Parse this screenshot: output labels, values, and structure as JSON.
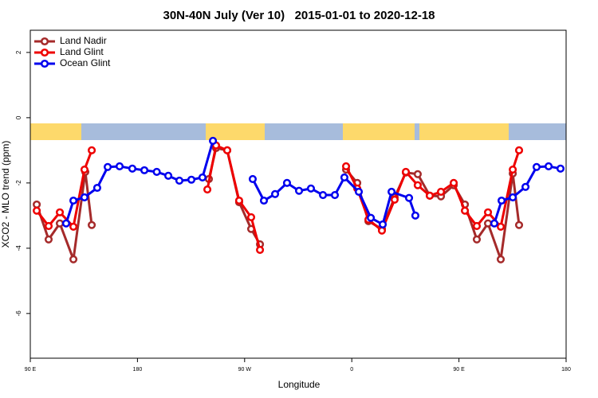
{
  "chart_data": {
    "type": "line",
    "title": "30N-40N July (Ver 10)   2015-01-01 to 2020-12-18",
    "xlabel": "Longitude",
    "ylabel": "XCO2 - MLO trend (ppm)",
    "xlim": [
      90,
      540
    ],
    "xticks": [
      {
        "value": 90,
        "label": "90 E"
      },
      {
        "value": 180,
        "label": "180"
      },
      {
        "value": 270,
        "label": "90 W"
      },
      {
        "value": 360,
        "label": "0"
      },
      {
        "value": 450,
        "label": "90 E"
      },
      {
        "value": 540,
        "label": "180"
      }
    ],
    "ylim": [
      -7.37,
      2.68
    ],
    "yticks": [
      -6,
      -4,
      -2,
      0,
      2
    ],
    "legend": "top-left",
    "series": [
      {
        "name": "Land Nadir",
        "color": "#a52a2a",
        "x": [
          95.4,
          105.4,
          114.8,
          126.2,
          136.2,
          141.6,
          null,
          240,
          246,
          255.4,
          265.4,
          275.5,
          282.9,
          null,
          355.2,
          364.6,
          374,
          385.3,
          396,
          405.4,
          415.4,
          425.5,
          434.9,
          445.6,
          455,
          465,
          474.4,
          485.1,
          495.2,
          500.5
        ],
        "values": [
          -2.66,
          -3.73,
          -3.24,
          -4.34,
          -1.66,
          -3.29,
          null,
          -1.88,
          -0.93,
          -1.0,
          -2.59,
          -3.41,
          -3.88,
          null,
          -1.59,
          -2.0,
          -3.17,
          -3.41,
          -2.44,
          -1.68,
          -1.73,
          -2.39,
          -2.41,
          -2.07,
          -2.66,
          -3.73,
          -3.24,
          -4.34,
          -1.71,
          -3.29
        ]
      },
      {
        "name": "Land Glint",
        "color": "#ee0000",
        "x": [
          95.4,
          105.4,
          114.8,
          126.2,
          135.5,
          141.6,
          null,
          238.7,
          246,
          255.4,
          265.4,
          275.5,
          282.9,
          null,
          355.2,
          364.6,
          374,
          385.3,
          396,
          405.4,
          415.4,
          425.5,
          434.9,
          445.6,
          455,
          465,
          474.4,
          485.1,
          495.2,
          500.5
        ],
        "values": [
          -2.85,
          -3.32,
          -2.9,
          -3.34,
          -1.59,
          -1.0,
          null,
          -2.2,
          -0.85,
          -1.0,
          -2.54,
          -3.05,
          -4.05,
          null,
          -1.49,
          -2.17,
          -3.12,
          -3.46,
          -2.51,
          -1.66,
          -2.07,
          -2.39,
          -2.27,
          -2.0,
          -2.85,
          -3.32,
          -2.9,
          -3.34,
          -1.59,
          -1.0
        ]
      },
      {
        "name": "Ocean Glint",
        "color": "#0000ee",
        "x": [
          120.1,
          126.2,
          135.5,
          146.2,
          155,
          165,
          175.7,
          185.8,
          196.2,
          205.9,
          215.2,
          225.3,
          234.6,
          243.4,
          null,
          276.8,
          286.2,
          295.6,
          305.6,
          315.7,
          325.7,
          335.8,
          345.8,
          353.8,
          365.9,
          376,
          386,
          393.4,
          408.1,
          413.4,
          null,
          479.7,
          485.8,
          495.2,
          505.9,
          515.2,
          525.3,
          535.3
        ],
        "values": [
          -3.24,
          -2.54,
          -2.44,
          -2.15,
          -1.51,
          -1.49,
          -1.56,
          -1.61,
          -1.66,
          -1.78,
          -1.93,
          -1.9,
          -1.83,
          -0.71,
          null,
          -1.88,
          -2.54,
          -2.34,
          -2.0,
          -2.24,
          -2.17,
          -2.37,
          -2.37,
          -1.83,
          -2.27,
          -3.07,
          -3.27,
          -2.27,
          -2.46,
          -3.0,
          null,
          -3.24,
          -2.54,
          -2.44,
          -2.12,
          -1.51,
          -1.49,
          -1.56
        ]
      }
    ]
  }
}
